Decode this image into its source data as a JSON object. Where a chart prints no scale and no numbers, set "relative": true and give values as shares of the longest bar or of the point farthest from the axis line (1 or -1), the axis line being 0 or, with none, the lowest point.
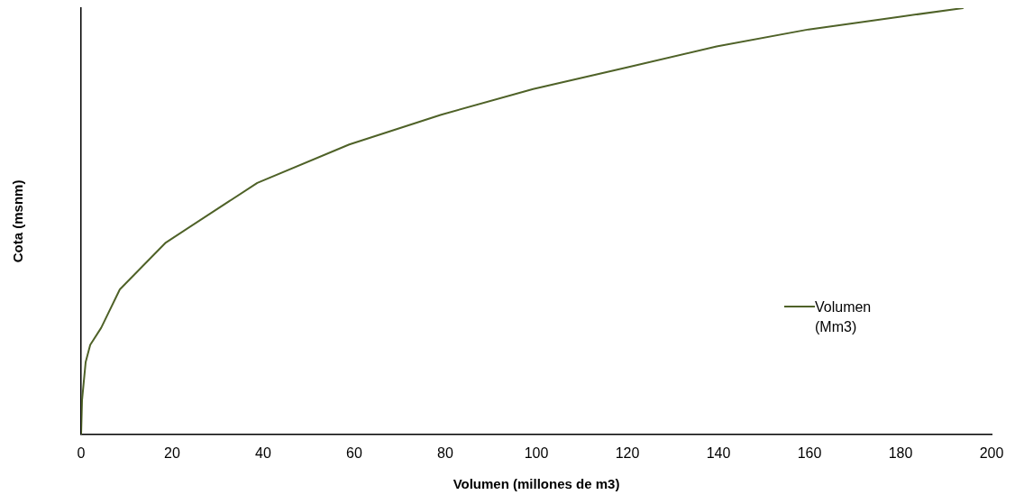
{
  "chart_data": {
    "type": "line",
    "xlabel": "Volumen (millones de m3)",
    "ylabel": "Cota (msnm)",
    "relative": true,
    "xlim": [
      0,
      200
    ],
    "xticks": [
      0,
      20,
      40,
      60,
      80,
      100,
      120,
      140,
      160,
      180,
      200
    ],
    "grid": false,
    "legend": "right",
    "marker": "none",
    "line_style": "solid",
    "series": [
      {
        "name": "Volumen (Mm3)",
        "color": "#4f6228",
        "x": [
          0,
          0.2,
          1,
          2,
          4.4,
          8.5,
          18.6,
          38.7,
          58.9,
          79.1,
          99.3,
          119.5,
          139.6,
          159.8,
          180,
          193.7
        ],
        "values": [
          0,
          0.08,
          0.17,
          0.21,
          0.25,
          0.34,
          0.45,
          0.59,
          0.68,
          0.75,
          0.81,
          0.86,
          0.91,
          0.95,
          0.98,
          1
        ]
      }
    ]
  }
}
